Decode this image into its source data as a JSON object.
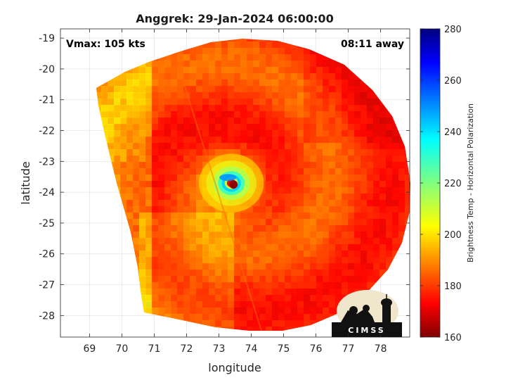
{
  "chart_data": {
    "type": "heatmap",
    "title": "Anggrek: 29-Jan-2024 06:00:00",
    "xlabel": "longitude",
    "ylabel": "latitude",
    "xlim": [
      68.1,
      78.9
    ],
    "ylim": [
      -28.7,
      -18.7
    ],
    "xticks": [
      69,
      70,
      71,
      72,
      73,
      74,
      75,
      76,
      77,
      78
    ],
    "yticks": [
      -19,
      -20,
      -21,
      -22,
      -23,
      -24,
      -25,
      -26,
      -27,
      -28
    ],
    "grid": true,
    "storm_center": {
      "lon": 73.45,
      "lat": -23.75
    },
    "annotations": {
      "vmax": "Vmax: 105 kts",
      "time_away": "08:11 away"
    },
    "colorbar": {
      "label": "Brightness Temp - Horizontal Polarization",
      "min": 160,
      "max": 280,
      "ticks": [
        160,
        180,
        200,
        220,
        240,
        260,
        280
      ],
      "colormap": "jet"
    },
    "logo": "CIMSS"
  }
}
